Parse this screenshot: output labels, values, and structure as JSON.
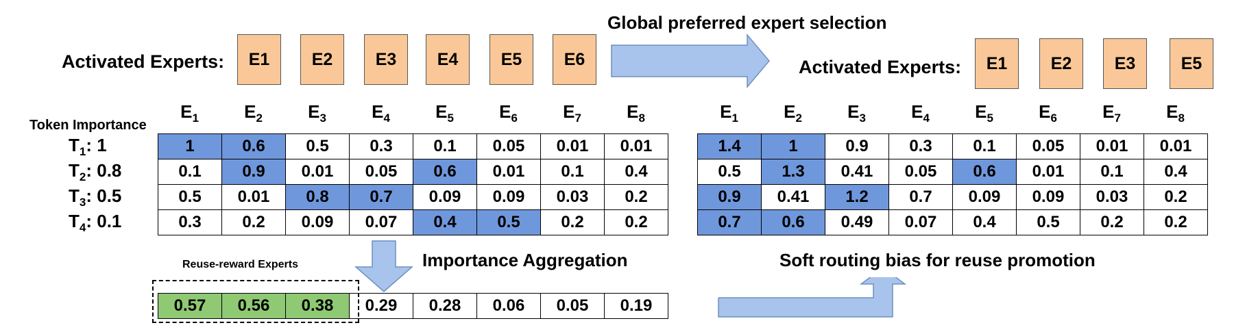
{
  "colors": {
    "expert_fill": "#fac898",
    "highlight": "#6f97dc",
    "reuse": "#8fc974",
    "arrow": "#a8c4ec"
  },
  "left": {
    "activated_label": "Activated Experts:",
    "activated": [
      "E1",
      "E2",
      "E3",
      "E4",
      "E5",
      "E6"
    ],
    "columns": [
      "E",
      "E",
      "E",
      "E",
      "E",
      "E",
      "E",
      "E"
    ],
    "column_subs": [
      "1",
      "2",
      "3",
      "4",
      "5",
      "6",
      "7",
      "8"
    ],
    "token_importance_label": "Token Importance",
    "rows": [
      {
        "t": "T",
        "sub": "1",
        "w": ": 1",
        "cells": [
          "1",
          "0.6",
          "0.5",
          "0.3",
          "0.1",
          "0.05",
          "0.01",
          "0.01"
        ],
        "hl": [
          0,
          1
        ]
      },
      {
        "t": "T",
        "sub": "2",
        "w": ": 0.8",
        "cells": [
          "0.1",
          "0.9",
          "0.01",
          "0.05",
          "0.6",
          "0.01",
          "0.1",
          "0.4"
        ],
        "hl": [
          1,
          4
        ]
      },
      {
        "t": "T",
        "sub": "3",
        "w": ": 0.5",
        "cells": [
          "0.5",
          "0.01",
          "0.8",
          "0.7",
          "0.09",
          "0.09",
          "0.03",
          "0.2"
        ],
        "hl": [
          2,
          3
        ]
      },
      {
        "t": "T",
        "sub": "4",
        "w": ": 0.1",
        "cells": [
          "0.3",
          "0.2",
          "0.09",
          "0.07",
          "0.4",
          "0.5",
          "0.2",
          "0.2"
        ],
        "hl": [
          4,
          5
        ]
      }
    ]
  },
  "global_selection_title": "Global preferred expert selection",
  "right": {
    "activated_label": "Activated Experts:",
    "activated": [
      "E1",
      "E2",
      "E3",
      "E5"
    ],
    "columns": [
      "E",
      "E",
      "E",
      "E",
      "E",
      "E",
      "E",
      "E"
    ],
    "column_subs": [
      "1",
      "2",
      "3",
      "4",
      "5",
      "6",
      "7",
      "8"
    ],
    "rows": [
      {
        "cells": [
          "1.4",
          "1",
          "0.9",
          "0.3",
          "0.1",
          "0.05",
          "0.01",
          "0.01"
        ],
        "hl": [
          0,
          1
        ]
      },
      {
        "cells": [
          "0.5",
          "1.3",
          "0.41",
          "0.05",
          "0.6",
          "0.01",
          "0.1",
          "0.4"
        ],
        "hl": [
          1,
          4
        ]
      },
      {
        "cells": [
          "0.9",
          "0.41",
          "1.2",
          "0.7",
          "0.09",
          "0.09",
          "0.03",
          "0.2"
        ],
        "hl": [
          0,
          2
        ]
      },
      {
        "cells": [
          "0.7",
          "0.6",
          "0.49",
          "0.07",
          "0.4",
          "0.5",
          "0.2",
          "0.2"
        ],
        "hl": [
          0,
          1
        ]
      }
    ]
  },
  "aggregation": {
    "title": "Importance Aggregation",
    "reuse_label": "Reuse-reward Experts",
    "cells": [
      "0.57",
      "0.56",
      "0.38",
      "0.29",
      "0.28",
      "0.06",
      "0.05",
      "0.19"
    ],
    "reuse_count": 3
  },
  "soft_routing_title": "Soft routing bias for reuse promotion"
}
